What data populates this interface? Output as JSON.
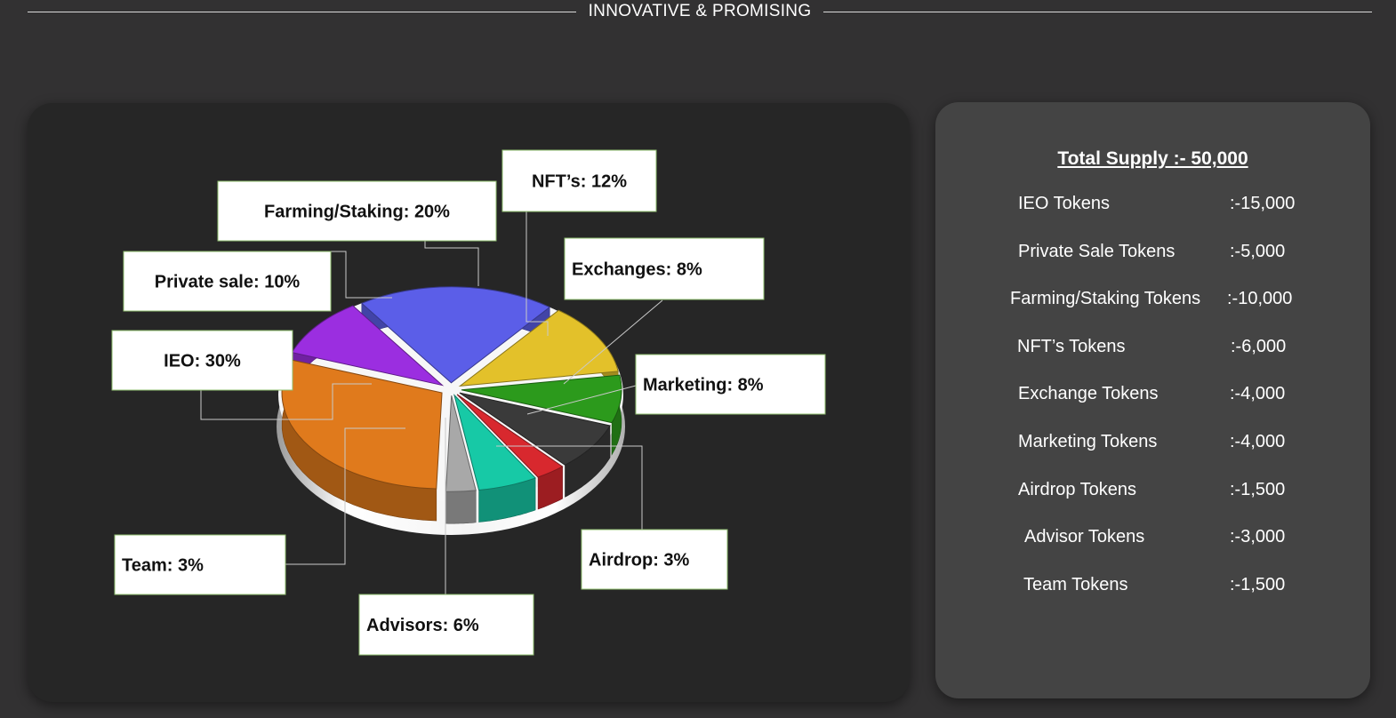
{
  "header": {
    "title": "INNOVATIVE & PROMISING"
  },
  "chart_data": {
    "type": "pie",
    "categories": [
      "IEO",
      "Private sale",
      "Farming/Staking",
      "NFT’s",
      "Exchanges",
      "Marketing",
      "Airdrop",
      "Advisors",
      "Team"
    ],
    "values": [
      30,
      10,
      20,
      12,
      8,
      8,
      3,
      6,
      3
    ],
    "labels": [
      "IEO: 30%",
      "Private sale: 10%",
      "Farming/Staking: 20%",
      "NFT’s: 12%",
      "Exchanges: 8%",
      "Marketing: 8%",
      "Airdrop: 3%",
      "Advisors: 6%",
      "Team: 3%"
    ],
    "colors": [
      "#e07a1c",
      "#9b2ee0",
      "#5b5ee8",
      "#e3c12a",
      "#2c9a1c",
      "#3a3a3a",
      "#d8282e",
      "#17c9a6",
      "#a8a8a8"
    ],
    "style": "3d-exploded"
  },
  "supply": {
    "title": "Total Supply :- 50,000",
    "rows": [
      {
        "label": "IEO Tokens",
        "value": ":-15,000"
      },
      {
        "label": "Private Sale Tokens",
        "value": ":-5,000"
      },
      {
        "label": "Farming/Staking Tokens",
        "value": ":-10,000"
      },
      {
        "label": "NFT’s Tokens",
        "value": ":-6,000"
      },
      {
        "label": "Exchange Tokens",
        "value": ":-4,000"
      },
      {
        "label": "Marketing Tokens",
        "value": ":-4,000"
      },
      {
        "label": "Airdrop Tokens",
        "value": ":-1,500"
      },
      {
        "label": "Advisor Tokens",
        "value": ":-3,000"
      },
      {
        "label": "Team Tokens",
        "value": ":-1,500"
      }
    ]
  }
}
